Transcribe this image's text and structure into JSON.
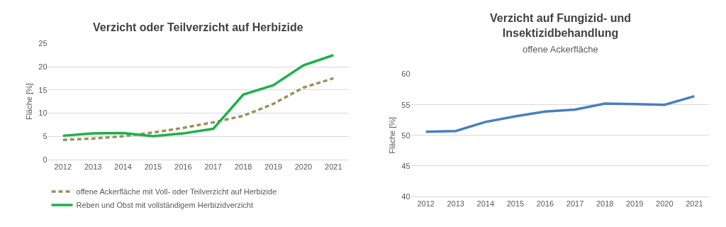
{
  "chart_data": [
    {
      "type": "line",
      "title": "Verzicht oder Teilverzicht auf Herbizide",
      "ylabel": "Fläche [%]",
      "categories": [
        "2012",
        "2013",
        "2014",
        "2015",
        "2016",
        "2017",
        "2018",
        "2019",
        "2020",
        "2021"
      ],
      "series": [
        {
          "name": "offene Ackerfläche mit Voll- oder Teilverzicht auf Herbizide",
          "color": "#9e9060",
          "line_style": "dashed",
          "values": [
            4.2,
            4.5,
            5.0,
            5.8,
            6.8,
            8.0,
            9.4,
            12.0,
            15.5,
            17.5
          ]
        },
        {
          "name": "Reben und Obst mit vollständigem Herbizidverzicht",
          "color": "#1db04b",
          "line_style": "solid",
          "values": [
            5.1,
            5.6,
            5.7,
            5.0,
            5.6,
            6.6,
            14.0,
            16.0,
            20.3,
            22.5
          ]
        }
      ],
      "ylim": [
        0,
        25
      ],
      "yticks": [
        0,
        5,
        10,
        15,
        20,
        25
      ],
      "grid": "y",
      "legend": "bottom",
      "marker": "none"
    },
    {
      "type": "line",
      "title": "Verzicht auf Fungizid- und\nInsektizidbehandlung",
      "subtitle": "offene Ackerfläche",
      "ylabel": "Fläche [%]",
      "categories": [
        "2012",
        "2013",
        "2014",
        "2015",
        "2016",
        "2017",
        "2018",
        "2019",
        "2020",
        "2021"
      ],
      "series": [
        {
          "color": "#4a7ebf",
          "line_style": "solid",
          "values": [
            50.6,
            50.7,
            52.2,
            53.1,
            53.9,
            54.2,
            55.2,
            55.1,
            55.0,
            56.4
          ]
        }
      ],
      "ylim": [
        40,
        60
      ],
      "yticks": [
        40,
        45,
        50,
        55,
        60
      ],
      "grid": "y",
      "legend": false,
      "marker": "none"
    }
  ]
}
